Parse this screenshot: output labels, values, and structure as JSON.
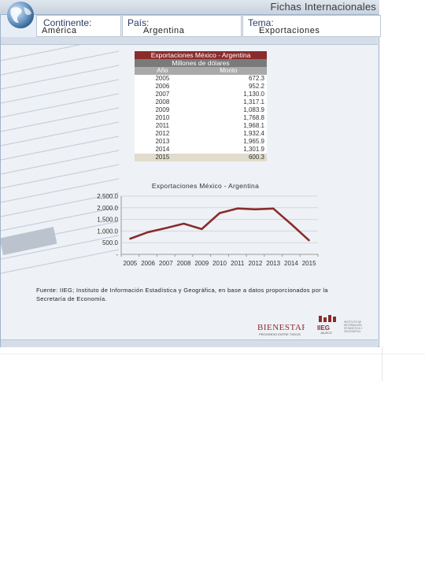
{
  "header": {
    "site_title": "Fichas Internacionales",
    "continent_label": "Continente:",
    "continent_value": "América",
    "country_label": "País:",
    "country_value": "Argentina",
    "topic_label": "Tema:",
    "topic_value": "Exportaciones"
  },
  "table": {
    "title": "Exportaciones México - Argentina",
    "subtitle": "Millones de dólares",
    "col_year": "Año",
    "col_amount": "Monto",
    "rows": [
      {
        "year": "2005",
        "amount": "672.3"
      },
      {
        "year": "2006",
        "amount": "952.2"
      },
      {
        "year": "2007",
        "amount": "1,130.0"
      },
      {
        "year": "2008",
        "amount": "1,317.1"
      },
      {
        "year": "2009",
        "amount": "1,083.9"
      },
      {
        "year": "2010",
        "amount": "1,768.8"
      },
      {
        "year": "2011",
        "amount": "1,968.1"
      },
      {
        "year": "2012",
        "amount": "1,932.4"
      },
      {
        "year": "2013",
        "amount": "1,965.9"
      },
      {
        "year": "2014",
        "amount": "1,301.9"
      },
      {
        "year": "2015",
        "amount": "600.3"
      }
    ]
  },
  "chart_data": {
    "type": "line",
    "title": "Exportaciones México - Argentina",
    "categories": [
      "2005",
      "2006",
      "2007",
      "2008",
      "2009",
      "2010",
      "2011",
      "2012",
      "2013",
      "2014",
      "2015"
    ],
    "series": [
      {
        "values": [
          672.3,
          952.2,
          1130.0,
          1317.1,
          1083.9,
          1768.8,
          1968.1,
          1932.4,
          1965.9,
          1301.9,
          600.3
        ]
      }
    ],
    "y_ticks": [
      "2,500.0",
      "2,000.0",
      "1,500.0",
      "1,000.0",
      "500.0",
      "-"
    ],
    "ylim": [
      0,
      2500
    ],
    "grid": true,
    "line_color": "#8b2c2c"
  },
  "source_text": "Fuente: IIEG; Instituto de Información Estadística y Geográfica, en base a datos proporcionados por la Secretaría de Economía.",
  "logos": {
    "bienestar": "BIENESTAR",
    "bienestar_sub": "PROGRESO ENTRE TODOS",
    "iieg": "IIEG",
    "iieg_sub": "JALISCO",
    "inst": "INSTITUTO DE INFORMACIÓN ESTADÍSTICA Y GEOGRÁFICA"
  }
}
